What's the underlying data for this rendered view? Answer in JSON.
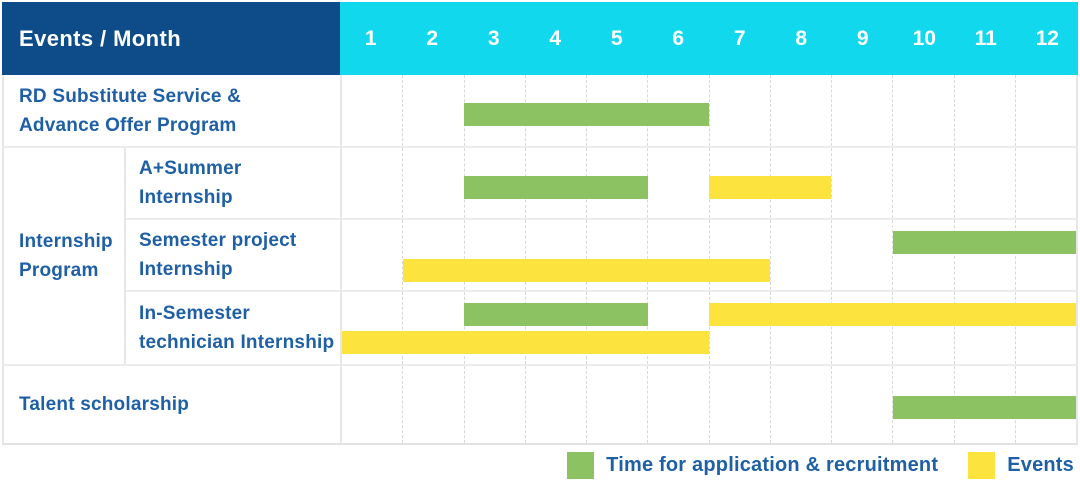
{
  "header": {
    "title": "Events / Month"
  },
  "colors": {
    "header_bg": "#0E4C89",
    "months_bg": "#12D8EE",
    "label_text": "#1E5FA6",
    "application_green": "#8CC262",
    "events_yellow": "#FCE33D"
  },
  "legend": {
    "items": [
      {
        "key": "application",
        "label": "Time for application & recruitment",
        "color": "#8CC262"
      },
      {
        "key": "events",
        "label": "Events",
        "color": "#FCE33D"
      }
    ]
  },
  "chart_data": {
    "type": "bar",
    "variant": "gantt",
    "title": "Events / Month",
    "x_axis_label": "Month",
    "months": [
      "1",
      "2",
      "3",
      "4",
      "5",
      "6",
      "7",
      "8",
      "9",
      "10",
      "11",
      "12"
    ],
    "x_range": [
      1,
      12
    ],
    "grid": "dashed-vertical",
    "legend_position": "bottom-right",
    "groups": [
      {
        "name": "Internship Program",
        "label_lines": [
          "Internship",
          "Program"
        ]
      }
    ],
    "rows": [
      {
        "group": null,
        "label": "RD Substitute Service & Advance Offer Program",
        "label_lines": [
          "RD Substitute Service &",
          "Advance Offer Program"
        ],
        "bars": [
          {
            "series": "application",
            "start_month": 3,
            "end_month": 6,
            "row_line": 0
          }
        ]
      },
      {
        "group": "Internship Program",
        "label": "A+Summer Internship",
        "label_lines": [
          "A+Summer",
          "Internship"
        ],
        "bars": [
          {
            "series": "application",
            "start_month": 3,
            "end_month": 5,
            "row_line": 0
          },
          {
            "series": "events",
            "start_month": 7,
            "end_month": 8,
            "row_line": 0
          }
        ]
      },
      {
        "group": "Internship Program",
        "label": "Semester project Internship",
        "label_lines": [
          "Semester project",
          "Internship"
        ],
        "bars": [
          {
            "series": "application",
            "start_month": 10,
            "end_month": 12,
            "row_line": 0
          },
          {
            "series": "events",
            "start_month": 2,
            "end_month": 7,
            "row_line": 1
          }
        ]
      },
      {
        "group": "Internship Program",
        "label": "In-Semester technician Internship",
        "label_lines": [
          "In-Semester",
          "technician Internship"
        ],
        "bars": [
          {
            "series": "application",
            "start_month": 3,
            "end_month": 5,
            "row_line": 0
          },
          {
            "series": "events",
            "start_month": 7,
            "end_month": 12,
            "row_line": 0
          },
          {
            "series": "events",
            "start_month": 1,
            "end_month": 6,
            "row_line": 1
          }
        ]
      },
      {
        "group": null,
        "label": "Talent scholarship",
        "label_lines": [
          "Talent scholarship"
        ],
        "bars": [
          {
            "series": "application",
            "start_month": 10,
            "end_month": 12,
            "row_line": 0
          }
        ]
      }
    ]
  }
}
